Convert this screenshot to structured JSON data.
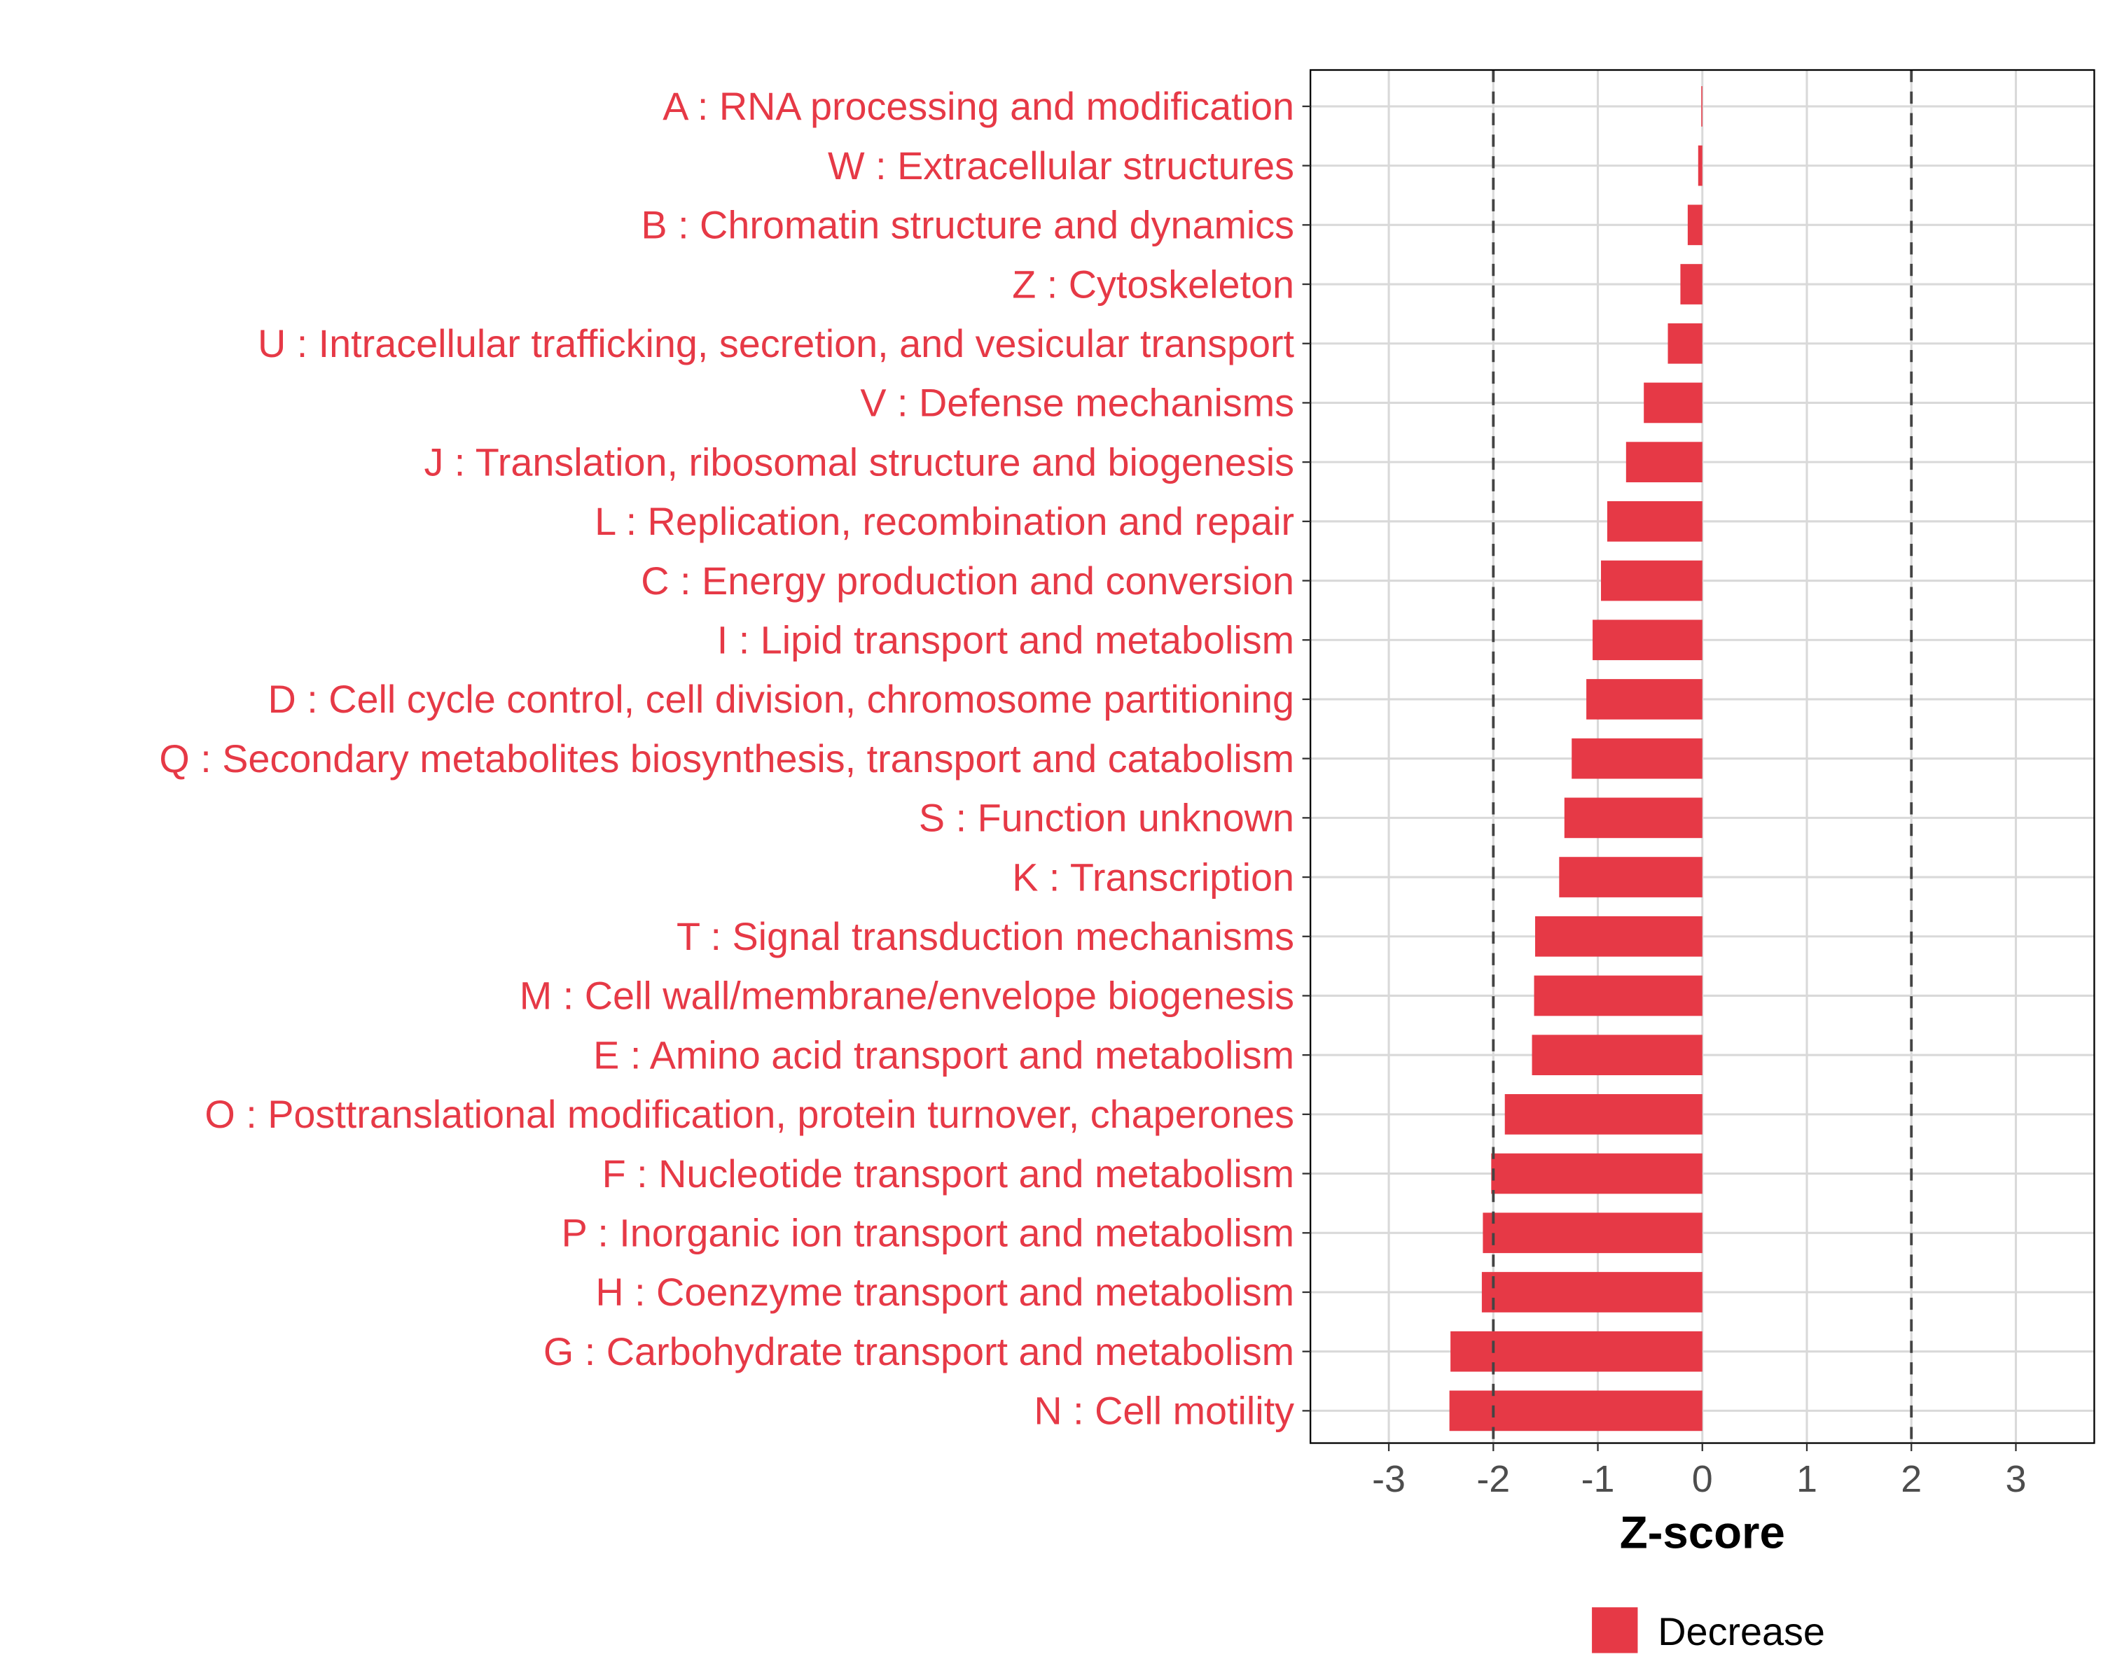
{
  "chart_data": {
    "type": "bar",
    "orientation": "horizontal",
    "title": "",
    "xlabel": "Z-score",
    "ylabel": "",
    "xlim": [
      -3.75,
      3.75
    ],
    "xticks": [
      -3,
      -2,
      -1,
      0,
      1,
      2,
      3
    ],
    "xtick_labels": [
      "-3",
      "-2",
      "-1",
      "0",
      "1",
      "2",
      "3"
    ],
    "reference_lines": [
      -2,
      2
    ],
    "grid": true,
    "legend": {
      "placement": "bottom",
      "entries": [
        {
          "label": "Decrease",
          "color": "#E63946"
        }
      ]
    },
    "bar_color": "#E63946",
    "label_color": "#E63946",
    "categories": [
      "A : RNA processing and modification",
      "W : Extracellular structures",
      "B : Chromatin structure and dynamics",
      "Z : Cytoskeleton",
      "U : Intracellular trafficking, secretion, and vesicular transport",
      "V : Defense mechanisms",
      "J : Translation, ribosomal structure and biogenesis",
      "L : Replication, recombination and repair",
      "C : Energy production and conversion",
      "I : Lipid transport and metabolism",
      "D : Cell cycle control, cell division, chromosome partitioning",
      "Q : Secondary metabolites biosynthesis, transport and catabolism",
      "S : Function unknown",
      "K : Transcription",
      "T : Signal transduction mechanisms",
      "M : Cell wall/membrane/envelope biogenesis",
      "E : Amino acid transport and metabolism",
      "O : Posttranslational modification, protein turnover, chaperones",
      "F : Nucleotide transport and metabolism",
      "P : Inorganic ion transport and metabolism",
      "H : Coenzyme transport and metabolism",
      "G : Carbohydrate transport and metabolism",
      "N : Cell motility"
    ],
    "values": [
      -0.01,
      -0.04,
      -0.14,
      -0.21,
      -0.33,
      -0.56,
      -0.73,
      -0.91,
      -0.97,
      -1.05,
      -1.11,
      -1.25,
      -1.32,
      -1.37,
      -1.6,
      -1.61,
      -1.63,
      -1.89,
      -2.02,
      -2.1,
      -2.11,
      -2.41,
      -2.42
    ]
  }
}
